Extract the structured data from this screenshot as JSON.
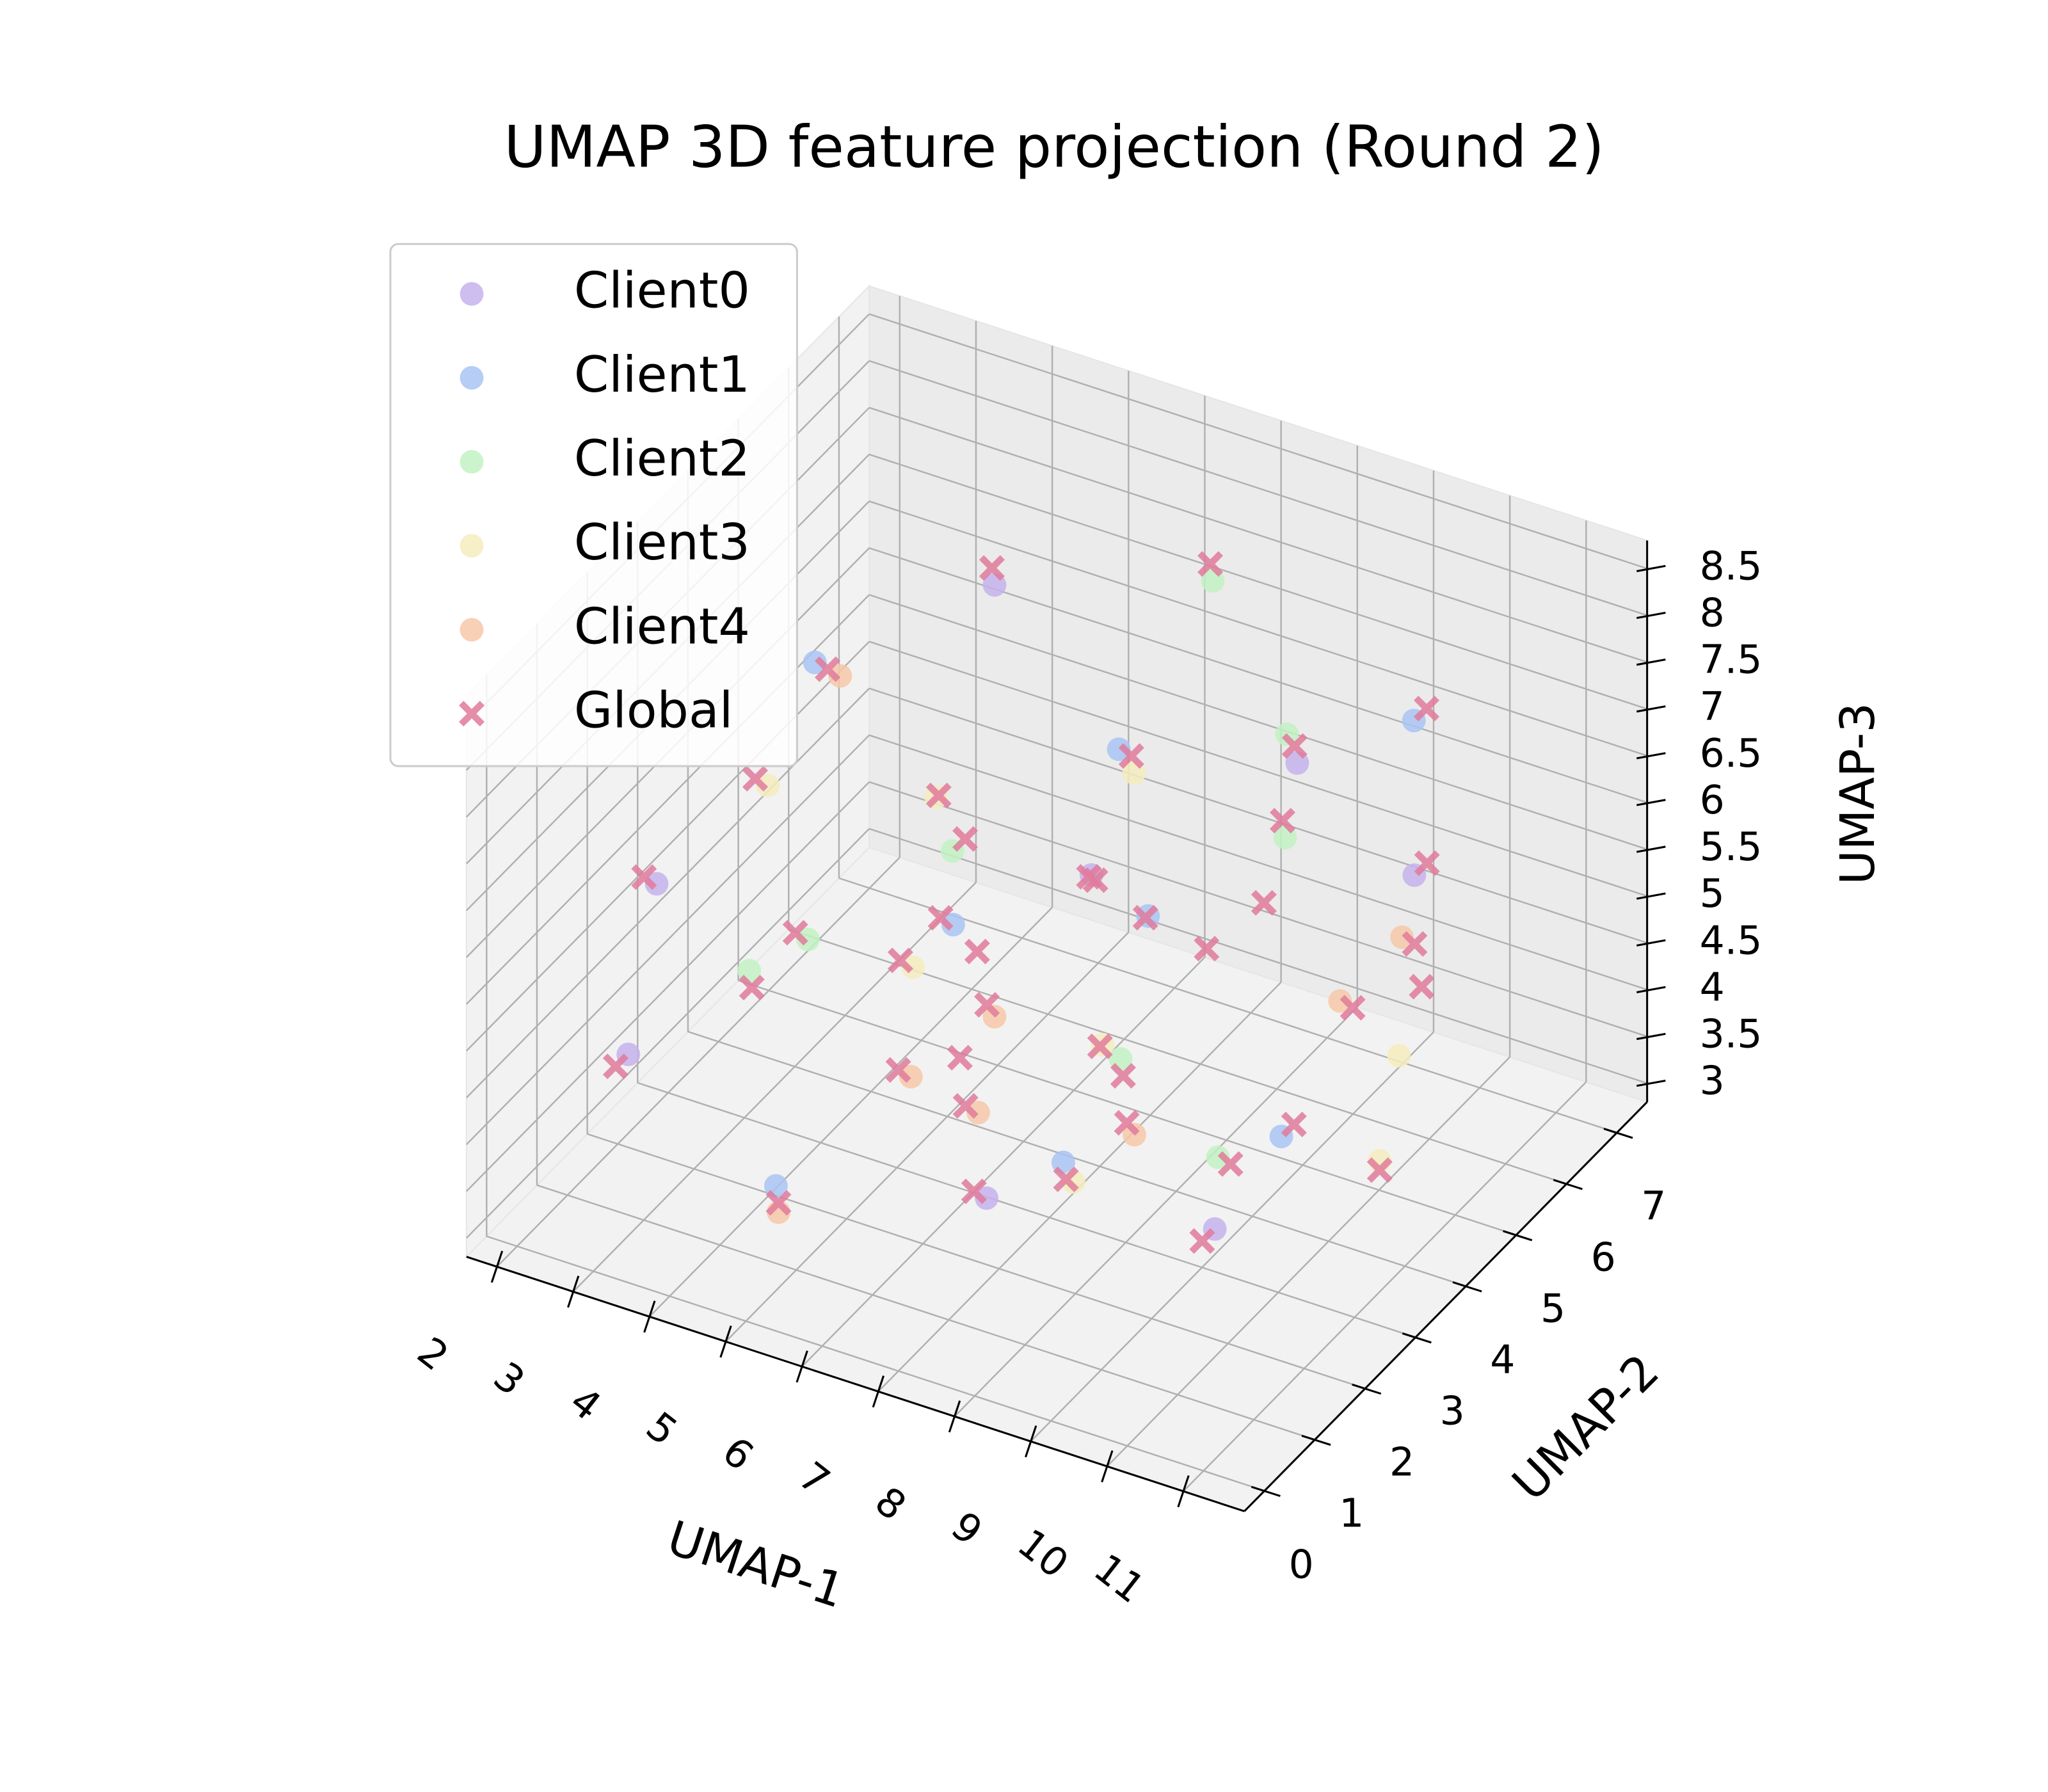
{
  "chart_data": {
    "type": "scatter3d",
    "title": "UMAP 3D feature projection (Round 2)",
    "xlabel": "UMAP-1",
    "ylabel": "UMAP-2",
    "zlabel": "UMAP-3",
    "xlim": [
      1.6,
      11.8
    ],
    "ylim": [
      -0.4,
      7.6
    ],
    "zlim": [
      2.8,
      8.8
    ],
    "xticks": [
      2,
      3,
      4,
      5,
      6,
      7,
      8,
      9,
      10,
      11
    ],
    "yticks": [
      0,
      1,
      2,
      3,
      4,
      5,
      6,
      7
    ],
    "zticks": [
      3.0,
      3.5,
      4.0,
      4.5,
      5.0,
      5.5,
      6.0,
      6.5,
      7.0,
      7.5,
      8.0,
      8.5
    ],
    "grid": true,
    "legend": "upper left",
    "series": [
      {
        "name": "Client0",
        "color": "#c5b3ec",
        "marker": "o",
        "x": [
          2.6,
          4.3,
          5.9,
          7.1,
          8.4,
          9.3,
          10.2,
          3.5
        ],
        "y": [
          1.3,
          6.0,
          5.5,
          1.6,
          5.8,
          2.8,
          5.4,
          0.5
        ],
        "z": [
          4.3,
          7.2,
          4.8,
          3.8,
          6.5,
          3.4,
          6.0,
          6.8
        ]
      },
      {
        "name": "Client1",
        "color": "#a9c4f3",
        "marker": "o",
        "x": [
          3.0,
          4.8,
          6.2,
          7.5,
          8.7,
          9.6,
          10.7,
          5.4
        ],
        "y": [
          4.4,
          0.9,
          2.3,
          4.2,
          0.7,
          6.3,
          2.0,
          6.8
        ],
        "z": [
          6.9,
          3.7,
          6.1,
          5.5,
          5.1,
          7.0,
          5.2,
          5.3
        ]
      },
      {
        "name": "Client2",
        "color": "#c3f2c3",
        "marker": "o",
        "x": [
          3.9,
          5.2,
          6.7,
          7.8,
          8.2,
          9.1,
          10.0,
          2.8
        ],
        "y": [
          2.9,
          3.8,
          6.7,
          3.2,
          5.9,
          4.5,
          1.8,
          3.4
        ],
        "z": [
          5.0,
          5.8,
          7.5,
          4.6,
          6.7,
          6.6,
          4.9,
          4.1
        ]
      },
      {
        "name": "Client3",
        "color": "#f4ecbe",
        "marker": "o",
        "x": [
          4.1,
          5.6,
          6.4,
          7.3,
          8.9,
          9.8,
          11.0,
          3.6
        ],
        "y": [
          1.8,
          6.8,
          1.2,
          3.6,
          0.6,
          5.7,
          3.5,
          5.9
        ],
        "z": [
          7.3,
          5.1,
          6.3,
          4.4,
          5.0,
          3.8,
          4.2,
          4.8
        ]
      },
      {
        "name": "Client4",
        "color": "#f7c8a8",
        "marker": "o",
        "x": [
          4.9,
          6.0,
          6.9,
          7.6,
          8.5,
          9.5,
          10.5,
          3.2
        ],
        "y": [
          0.8,
          3.1,
          0.4,
          1.0,
          6.5,
          0.9,
          4.7,
          4.6
        ],
        "z": [
          3.5,
          3.6,
          5.7,
          6.2,
          3.6,
          5.5,
          5.8,
          6.7
        ]
      },
      {
        "name": "Global",
        "color": "#e07a9b",
        "marker": "x",
        "x": [
          2.5,
          3.1,
          3.8,
          4.2,
          4.9,
          5.3,
          5.8,
          6.1,
          6.6,
          7.0,
          7.4,
          7.9,
          8.3,
          8.8,
          9.2,
          9.7,
          10.1,
          10.6,
          11.0,
          3.4,
          4.6,
          5.5,
          6.3,
          7.2,
          8.0,
          8.6,
          9.4,
          10.3,
          2.9,
          4.0,
          5.1,
          6.8,
          7.7,
          9.0,
          10.8,
          3.7,
          5.9,
          7.5,
          8.4,
          9.9
        ],
        "y": [
          1.2,
          4.5,
          2.8,
          6.1,
          0.8,
          3.9,
          5.6,
          2.2,
          6.8,
          1.5,
          4.3,
          3.1,
          5.9,
          0.6,
          2.7,
          6.4,
          1.9,
          4.8,
          3.5,
          0.4,
          5.2,
          6.9,
          1.1,
          3.7,
          2.4,
          6.6,
          0.9,
          5.5,
          3.3,
          1.7,
          4.1,
          0.3,
          6.2,
          4.6,
          2.1,
          5.8,
          3.0,
          1.0,
          4.0,
          6.0
        ],
        "z": [
          4.2,
          6.8,
          5.1,
          7.3,
          3.6,
          5.9,
          4.7,
          6.2,
          7.6,
          3.9,
          5.4,
          4.5,
          6.6,
          5.0,
          3.3,
          7.1,
          4.8,
          5.7,
          4.1,
          6.9,
          3.8,
          5.2,
          6.4,
          4.3,
          7.0,
          3.5,
          5.6,
          6.1,
          4.0,
          7.4,
          3.4,
          5.8,
          4.6,
          6.7,
          5.3,
          4.9,
          3.7,
          6.3,
          5.5,
          4.4
        ]
      }
    ]
  }
}
